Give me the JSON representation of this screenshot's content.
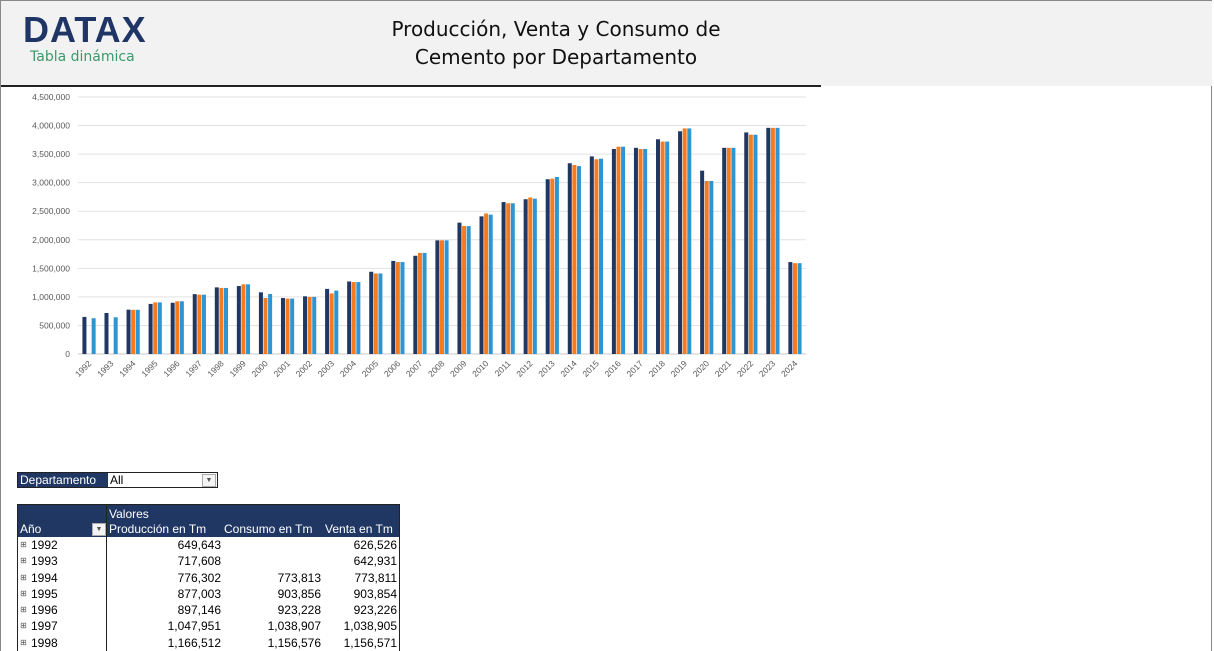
{
  "header": {
    "logo": "DATAX",
    "subtitle": "Tabla dinámica",
    "title_line1": "Producción, Venta y Consumo de",
    "title_line2": "Cemento por Departamento"
  },
  "filter": {
    "label": "Departamento",
    "value": "All"
  },
  "table": {
    "values_label": "Valores",
    "columns": [
      "Año",
      "Producción en Tm",
      "Consumo en Tm",
      "Venta en Tm"
    ],
    "rows": [
      [
        "1992",
        "649,643",
        "",
        "626,526"
      ],
      [
        "1993",
        "717,608",
        "",
        "642,931"
      ],
      [
        "1994",
        "776,302",
        "773,813",
        "773,811"
      ],
      [
        "1995",
        "877,003",
        "903,856",
        "903,854"
      ],
      [
        "1996",
        "897,146",
        "923,228",
        "923,226"
      ],
      [
        "1997",
        "1,047,951",
        "1,038,907",
        "1,038,905"
      ],
      [
        "1998",
        "1,166,512",
        "1,156,576",
        "1,156,571"
      ]
    ]
  },
  "chart_data": {
    "type": "bar",
    "ylim": [
      0,
      4500000
    ],
    "yticks": [
      0,
      500000,
      1000000,
      1500000,
      2000000,
      2500000,
      3000000,
      3500000,
      4000000,
      4500000
    ],
    "ytick_labels": [
      "0",
      "500,000",
      "1,000,000",
      "1,500,000",
      "2,000,000",
      "2,500,000",
      "3,000,000",
      "3,500,000",
      "4,000,000",
      "4,500,000"
    ],
    "grid": true,
    "categories": [
      "1992",
      "1993",
      "1994",
      "1995",
      "1996",
      "1997",
      "1998",
      "1999",
      "2000",
      "2001",
      "2002",
      "2003",
      "2004",
      "2005",
      "2006",
      "2007",
      "2008",
      "2009",
      "2010",
      "2011",
      "2012",
      "2013",
      "2014",
      "2015",
      "2016",
      "2017",
      "2018",
      "2019",
      "2020",
      "2021",
      "2022",
      "2023",
      "2024"
    ],
    "series": [
      {
        "color": "#203764",
        "values": [
          649643,
          717608,
          776302,
          877003,
          897146,
          1047951,
          1166512,
          1190000,
          1080000,
          980000,
          1010000,
          1140000,
          1270000,
          1440000,
          1630000,
          1720000,
          1990000,
          2300000,
          2410000,
          2660000,
          2710000,
          3060000,
          3340000,
          3460000,
          3590000,
          3610000,
          3760000,
          3900000,
          3210000,
          3610000,
          3880000,
          3960000,
          1610000
        ]
      },
      {
        "color": "#f47c20",
        "values": [
          null,
          null,
          773813,
          903856,
          923228,
          1038907,
          1156576,
          1220000,
          980000,
          970000,
          1000000,
          1060000,
          1260000,
          1410000,
          1610000,
          1770000,
          1990000,
          2240000,
          2460000,
          2640000,
          2740000,
          3070000,
          3310000,
          3410000,
          3630000,
          3590000,
          3720000,
          3950000,
          3030000,
          3610000,
          3840000,
          3960000,
          1590000
        ]
      },
      {
        "color": "#2e95d3",
        "values": [
          626526,
          642931,
          773811,
          903854,
          923226,
          1038905,
          1156571,
          1220000,
          1050000,
          970000,
          1000000,
          1110000,
          1260000,
          1410000,
          1610000,
          1770000,
          1990000,
          2240000,
          2440000,
          2640000,
          2720000,
          3100000,
          3290000,
          3420000,
          3630000,
          3590000,
          3720000,
          3950000,
          3030000,
          3610000,
          3840000,
          3960000,
          1590000
        ]
      }
    ]
  }
}
